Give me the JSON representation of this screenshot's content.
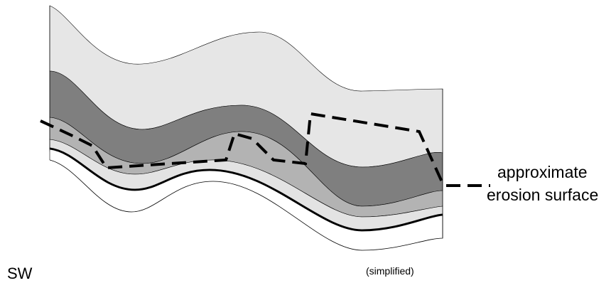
{
  "legend": {
    "line1": "approximate",
    "line2": "erosion surface"
  },
  "direction_label": "SW",
  "note": "(simplified)",
  "colors": {
    "layer_top": "#e6e6e6",
    "layer_dark": "#7f7f7f",
    "layer_mid": "#b3b3b3",
    "layer_light": "#e3e3e3",
    "layer_base": "#ffffff",
    "stroke": "#000000"
  }
}
